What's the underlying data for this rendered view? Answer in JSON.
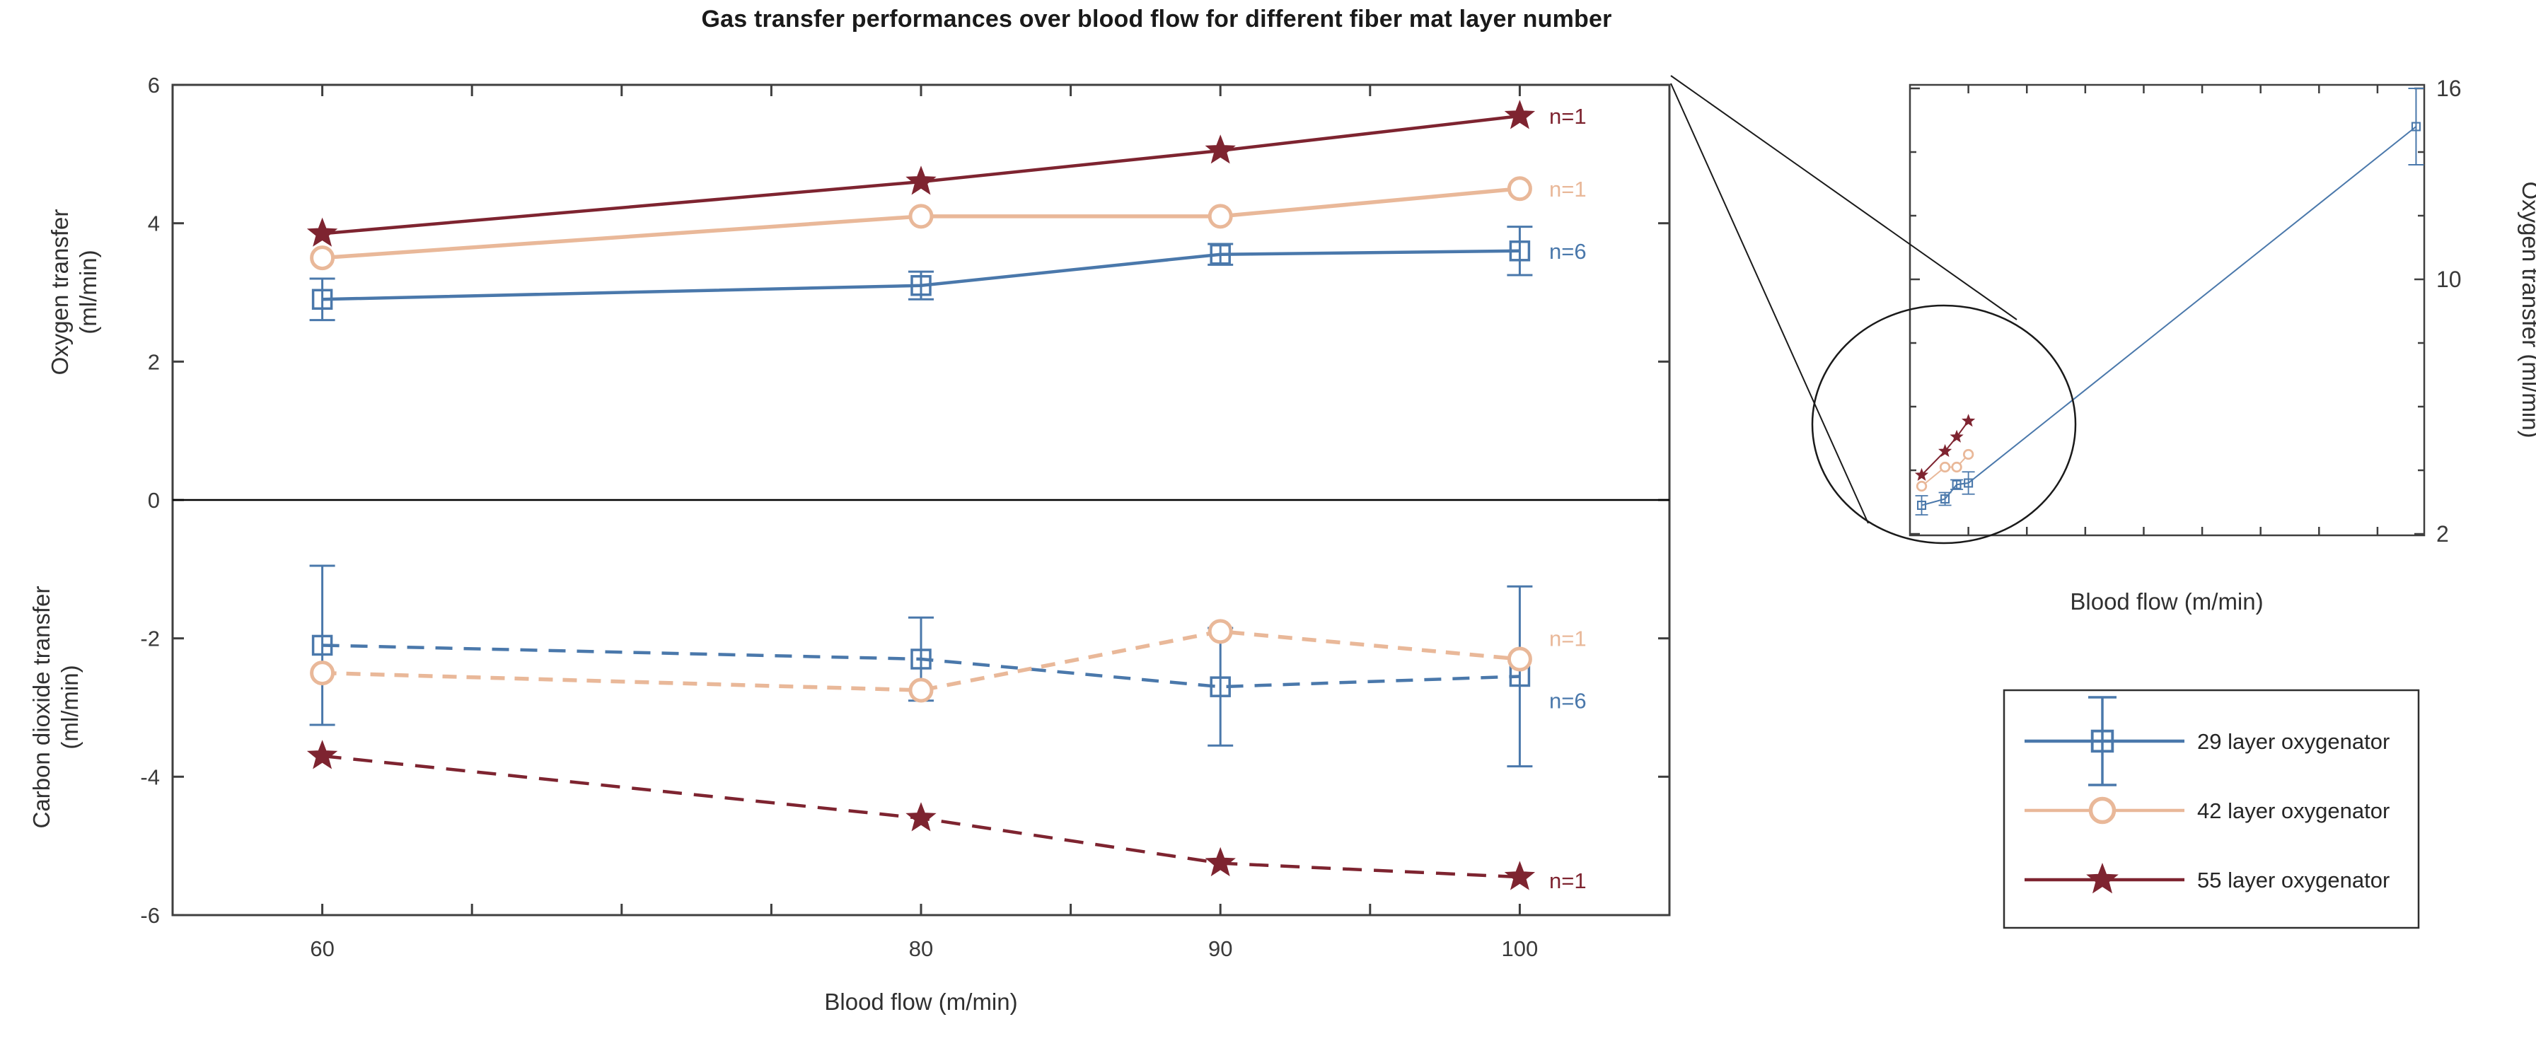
{
  "title": "Gas transfer performances over blood flow for different fiber mat layer number",
  "colors": {
    "blue": "#4A78AB",
    "tan": "#E9B899",
    "red": "#7E2430",
    "axis": "#3F3F3F",
    "tick_text": "#3A3A3A",
    "zero_line": "#000000",
    "annotation_line": "#1a1a1a"
  },
  "chart_data": [
    {
      "type": "line",
      "id": "main",
      "xlabel": "Blood flow (m/min)",
      "ylabel_top_line1": "Oxygen transfer",
      "ylabel_top_line2": "(ml/min)",
      "ylabel_bottom_line1": "Carbon dioxide transfer",
      "ylabel_bottom_line2": "(ml/min)",
      "x": [
        60,
        80,
        90,
        100
      ],
      "xlim": [
        55,
        105
      ],
      "ylim": [
        -6,
        6
      ],
      "xticks_labeled": [
        60,
        80,
        90,
        100
      ],
      "xtick_minor_step": 5,
      "yticks": [
        6,
        4,
        2,
        0,
        -2,
        -4,
        -6
      ],
      "grid": false,
      "series": [
        {
          "name": "29 layer oxygenator",
          "color_key": "blue",
          "marker": "square",
          "oxygen": [
            2.9,
            3.1,
            3.55,
            3.6
          ],
          "oxygen_err": [
            0.3,
            0.2,
            0.15,
            0.35
          ],
          "co2": [
            -2.1,
            -2.3,
            -2.7,
            -2.55
          ],
          "co2_err": [
            1.15,
            0.6,
            0.85,
            1.3
          ]
        },
        {
          "name": "42 layer oxygenator",
          "color_key": "tan",
          "marker": "circle",
          "oxygen": [
            3.5,
            4.1,
            4.1,
            4.5
          ],
          "oxygen_err": [
            0,
            0,
            0,
            0
          ],
          "co2": [
            -2.5,
            -2.75,
            -1.9,
            -2.3
          ],
          "co2_err": [
            0,
            0,
            0,
            0
          ]
        },
        {
          "name": "55 layer oxygenator",
          "color_key": "red",
          "marker": "star",
          "oxygen": [
            3.85,
            4.6,
            5.05,
            5.55
          ],
          "oxygen_err": [
            0,
            0,
            0,
            0
          ],
          "co2": [
            -3.7,
            -4.6,
            -5.25,
            -5.45
          ],
          "co2_err": [
            0,
            0,
            0,
            0
          ]
        }
      ],
      "annotations": {
        "oxygen": [
          {
            "label": "n=1",
            "color_key": "red",
            "value": 5.55
          },
          {
            "label": "n=1",
            "color_key": "tan",
            "value": 4.5
          },
          {
            "label": "n=6",
            "color_key": "blue",
            "value": 3.6
          }
        ],
        "co2": [
          {
            "label": "n=1",
            "color_key": "tan",
            "value": -2.0
          },
          {
            "label": "n=6",
            "color_key": "blue",
            "value": -2.9
          },
          {
            "label": "n=1",
            "color_key": "red",
            "value": -5.5
          }
        ]
      }
    },
    {
      "type": "line",
      "id": "inset",
      "xlabel": "Blood flow (m/min)",
      "ylabel": "Oxygen transfer (ml/min)",
      "xlim": [
        50,
        490
      ],
      "ylim": [
        2,
        16
      ],
      "yticks_labeled": [
        16,
        10,
        2
      ],
      "yticks_minor": [
        4,
        6,
        8,
        12,
        14
      ],
      "xticks_minor": [
        100,
        150,
        200,
        250,
        300,
        350,
        400,
        450
      ],
      "cluster_x": [
        60,
        80,
        90,
        100
      ],
      "series": [
        {
          "name": "29 layer oxygenator",
          "color_key": "blue",
          "marker": "square",
          "values": [
            2.9,
            3.1,
            3.55,
            3.6
          ],
          "err": [
            0.3,
            0.2,
            0.15,
            0.35
          ],
          "extra_point": {
            "x": 483,
            "value": 14.8,
            "err": 1.2
          }
        },
        {
          "name": "42 layer oxygenator",
          "color_key": "tan",
          "marker": "circle",
          "values": [
            3.5,
            4.1,
            4.1,
            4.5
          ]
        },
        {
          "name": "55 layer oxygenator",
          "color_key": "red",
          "marker": "star",
          "values": [
            3.85,
            4.6,
            5.05,
            5.55
          ]
        }
      ],
      "zoom_annotation": "ellipse around low-flow cluster with two callout lines from main plot corner"
    }
  ],
  "legend": {
    "items": [
      {
        "label": "29 layer oxygenator",
        "color_key": "blue",
        "marker": "square",
        "has_error_bar": true
      },
      {
        "label": "42 layer oxygenator",
        "color_key": "tan",
        "marker": "circle",
        "has_error_bar": false
      },
      {
        "label": "55 layer oxygenator",
        "color_key": "red",
        "marker": "star",
        "has_error_bar": false
      }
    ]
  }
}
